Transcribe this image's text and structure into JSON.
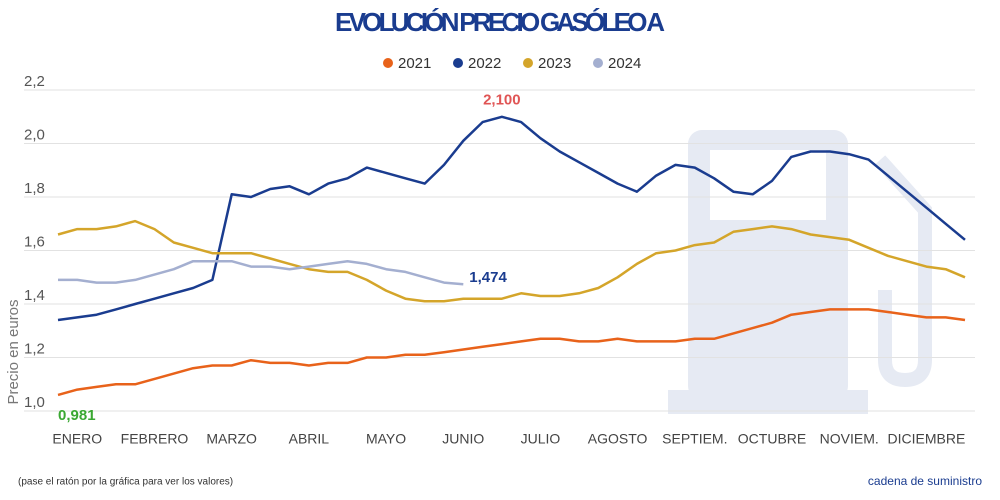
{
  "chart_data": {
    "type": "line",
    "title": "EVOLUCIÓN PRECIO GASÓLEO A",
    "ylabel": "Precio en euros",
    "note": "(pase el ratón por la gráfica para ver los valores)",
    "brand": "cadena de suministro",
    "categories": [
      null,
      "ENERO",
      null,
      null,
      null,
      "FEBRERO",
      null,
      null,
      null,
      "MARZO",
      null,
      null,
      null,
      "ABRIL",
      null,
      null,
      null,
      "MAYO",
      null,
      null,
      null,
      "JUNIO",
      null,
      null,
      null,
      "JULIO",
      null,
      null,
      null,
      "AGOSTO",
      null,
      null,
      null,
      "SEPTIEM.",
      null,
      null,
      null,
      "OCTUBRE",
      null,
      null,
      null,
      "NOVIEM.",
      null,
      null,
      null,
      "DICIEMBRE",
      null,
      null
    ],
    "series": [
      {
        "name": "2021",
        "color": "#e8621a",
        "values": [
          1.06,
          1.08,
          1.09,
          1.1,
          1.1,
          1.12,
          1.14,
          1.16,
          1.17,
          1.17,
          1.19,
          1.18,
          1.18,
          1.17,
          1.18,
          1.18,
          1.2,
          1.2,
          1.21,
          1.21,
          1.22,
          1.23,
          1.24,
          1.25,
          1.26,
          1.27,
          1.27,
          1.26,
          1.26,
          1.27,
          1.26,
          1.26,
          1.26,
          1.27,
          1.27,
          1.29,
          1.31,
          1.33,
          1.36,
          1.37,
          1.38,
          1.38,
          1.38,
          1.37,
          1.36,
          1.35,
          1.35,
          1.34
        ]
      },
      {
        "name": "2022",
        "color": "#1a3c8f",
        "values": [
          1.34,
          1.35,
          1.36,
          1.38,
          1.4,
          1.42,
          1.44,
          1.46,
          1.49,
          1.81,
          1.8,
          1.83,
          1.84,
          1.81,
          1.85,
          1.87,
          1.91,
          1.89,
          1.87,
          1.85,
          1.92,
          2.01,
          2.08,
          2.1,
          2.08,
          2.02,
          1.97,
          1.93,
          1.89,
          1.85,
          1.82,
          1.88,
          1.92,
          1.91,
          1.87,
          1.82,
          1.81,
          1.86,
          1.95,
          1.97,
          1.97,
          1.96,
          1.94,
          1.88,
          1.82,
          1.76,
          1.7,
          1.64
        ]
      },
      {
        "name": "2023",
        "color": "#d4a52a",
        "values": [
          1.66,
          1.68,
          1.68,
          1.69,
          1.71,
          1.68,
          1.63,
          1.61,
          1.59,
          1.59,
          1.59,
          1.57,
          1.55,
          1.53,
          1.52,
          1.52,
          1.49,
          1.45,
          1.42,
          1.41,
          1.41,
          1.42,
          1.42,
          1.42,
          1.44,
          1.43,
          1.43,
          1.44,
          1.46,
          1.5,
          1.55,
          1.59,
          1.6,
          1.62,
          1.63,
          1.67,
          1.68,
          1.69,
          1.68,
          1.66,
          1.65,
          1.64,
          1.61,
          1.58,
          1.56,
          1.54,
          1.53,
          1.5
        ]
      },
      {
        "name": "2024",
        "color": "#a4afd0",
        "values": [
          1.49,
          1.49,
          1.48,
          1.48,
          1.49,
          1.51,
          1.53,
          1.56,
          1.56,
          1.56,
          1.54,
          1.54,
          1.53,
          1.54,
          1.55,
          1.56,
          1.55,
          1.53,
          1.52,
          1.5,
          1.48,
          1.474,
          null,
          null,
          null,
          null,
          null,
          null,
          null,
          null,
          null,
          null,
          null,
          null,
          null,
          null,
          null,
          null,
          null,
          null,
          null,
          null,
          null,
          null,
          null,
          null,
          null,
          null
        ]
      }
    ],
    "annotations": [
      {
        "label": "2,100",
        "value": 2.1,
        "color": "#e05555"
      },
      {
        "label": "1,474",
        "value": 1.474,
        "color": "#1a3c8f"
      },
      {
        "label": "0,981",
        "value": 0.981,
        "color": "#3aa832"
      }
    ],
    "ylim": [
      1.0,
      2.2
    ],
    "yticks": [
      {
        "value": 1.0,
        "label": "1,0"
      },
      {
        "value": 1.2,
        "label": "1,2"
      },
      {
        "value": 1.4,
        "label": "1,4"
      },
      {
        "value": 1.6,
        "label": "1,6"
      },
      {
        "value": 1.8,
        "label": "1,8"
      },
      {
        "value": 2.0,
        "label": "2,0"
      },
      {
        "value": 2.2,
        "label": "2,2"
      }
    ],
    "grid": true
  }
}
